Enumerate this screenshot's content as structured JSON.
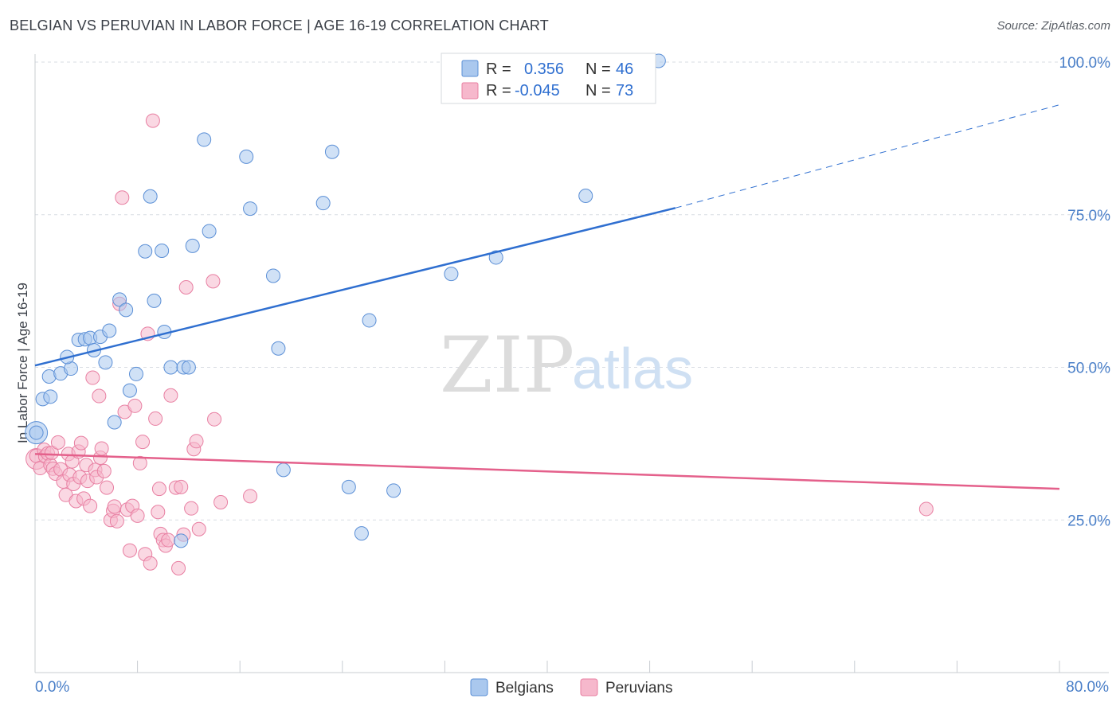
{
  "title": "BELGIAN VS PERUVIAN IN LABOR FORCE | AGE 16-19 CORRELATION CHART",
  "source": "Source: ZipAtlas.com",
  "watermark": {
    "zip": "ZIP",
    "atlas": "atlas"
  },
  "colors": {
    "belgian_fill": "#aac8ee",
    "belgian_stroke": "#5b8fd6",
    "belgian_line": "#2f6fd0",
    "peruvian_fill": "#f6b8cc",
    "peruvian_stroke": "#e87fa2",
    "peruvian_line": "#e4608b",
    "grid": "#d9dde3",
    "tick_text": "#4a7fc8"
  },
  "legend": {
    "rows": [
      {
        "r_label": "R =",
        "r_value": "0.356",
        "n_label": "N =",
        "n_value": "46"
      },
      {
        "r_label": "R =",
        "r_value": "-0.045",
        "n_label": "N =",
        "n_value": "73"
      }
    ]
  },
  "bottom_legend": {
    "belgians": "Belgians",
    "peruvians": "Peruvians"
  },
  "chart_data": {
    "type": "scatter",
    "title": "BELGIAN VS PERUVIAN IN LABOR FORCE | AGE 16-19 CORRELATION CHART",
    "xlabel": "",
    "ylabel": "In Labor Force | Age 16-19",
    "xlim": [
      0,
      80
    ],
    "ylim": [
      0,
      100
    ],
    "x_tick_labels": {
      "min": "0.0%",
      "max": "80.0%"
    },
    "y_ticks": [
      {
        "value": 25,
        "label": "25.0%"
      },
      {
        "value": 50,
        "label": "50.0%"
      },
      {
        "value": 75,
        "label": "75.0%"
      },
      {
        "value": 100,
        "label": "100.0%"
      }
    ],
    "series": [
      {
        "name": "Belgians",
        "r": 0.356,
        "n": 46,
        "trend": {
          "x0": 0,
          "y0": 50.3,
          "x1": 50,
          "y1": 76.1,
          "dash_x1": 80,
          "dash_y1": 93
        },
        "points": [
          [
            0.1,
            39.3
          ],
          [
            0.6,
            44.8
          ],
          [
            1.2,
            45.2
          ],
          [
            1.1,
            48.5
          ],
          [
            2.0,
            49.0
          ],
          [
            2.8,
            49.8
          ],
          [
            2.5,
            51.7
          ],
          [
            3.4,
            54.5
          ],
          [
            3.9,
            54.6
          ],
          [
            4.3,
            54.8
          ],
          [
            4.6,
            52.8
          ],
          [
            5.1,
            55.0
          ],
          [
            5.5,
            50.8
          ],
          [
            5.8,
            56.0
          ],
          [
            6.2,
            41.0
          ],
          [
            6.6,
            61.1
          ],
          [
            7.1,
            59.4
          ],
          [
            7.4,
            46.2
          ],
          [
            7.9,
            48.9
          ],
          [
            8.6,
            69.0
          ],
          [
            9.0,
            78.0
          ],
          [
            9.3,
            60.9
          ],
          [
            9.9,
            69.1
          ],
          [
            10.1,
            55.8
          ],
          [
            10.6,
            50.0
          ],
          [
            11.4,
            21.6
          ],
          [
            11.6,
            50.0
          ],
          [
            12.0,
            50.0
          ],
          [
            12.3,
            69.9
          ],
          [
            13.2,
            87.3
          ],
          [
            13.6,
            72.3
          ],
          [
            16.5,
            84.5
          ],
          [
            16.8,
            76.0
          ],
          [
            18.6,
            65.0
          ],
          [
            19.0,
            53.1
          ],
          [
            19.4,
            33.2
          ],
          [
            22.5,
            76.9
          ],
          [
            23.2,
            85.3
          ],
          [
            24.5,
            30.4
          ],
          [
            25.5,
            22.8
          ],
          [
            26.1,
            57.7
          ],
          [
            28.0,
            29.8
          ],
          [
            32.5,
            65.3
          ],
          [
            36.0,
            68.0
          ],
          [
            43.0,
            78.1
          ],
          [
            48.7,
            100.2
          ]
        ]
      },
      {
        "name": "Peruvians",
        "r": -0.045,
        "n": 73,
        "trend": {
          "x0": 0,
          "y0": 35.8,
          "x1": 80,
          "y1": 30.1
        },
        "points": [
          [
            0.1,
            35.5
          ],
          [
            0.4,
            33.5
          ],
          [
            0.7,
            36.5
          ],
          [
            0.8,
            35.4
          ],
          [
            1.0,
            35.9
          ],
          [
            1.2,
            34.0
          ],
          [
            1.3,
            36.0
          ],
          [
            1.4,
            33.4
          ],
          [
            1.6,
            32.6
          ],
          [
            1.8,
            37.7
          ],
          [
            2.0,
            33.3
          ],
          [
            2.2,
            31.3
          ],
          [
            2.4,
            29.1
          ],
          [
            2.6,
            35.8
          ],
          [
            2.7,
            32.4
          ],
          [
            2.9,
            34.6
          ],
          [
            3.0,
            30.9
          ],
          [
            3.2,
            28.1
          ],
          [
            3.4,
            36.2
          ],
          [
            3.5,
            32.0
          ],
          [
            3.6,
            37.6
          ],
          [
            3.8,
            28.5
          ],
          [
            4.0,
            34.0
          ],
          [
            4.1,
            31.4
          ],
          [
            4.3,
            27.3
          ],
          [
            4.5,
            48.3
          ],
          [
            4.7,
            33.2
          ],
          [
            4.8,
            32.0
          ],
          [
            5.0,
            45.3
          ],
          [
            5.1,
            35.2
          ],
          [
            5.2,
            36.7
          ],
          [
            5.4,
            33.0
          ],
          [
            5.6,
            30.3
          ],
          [
            5.9,
            25.0
          ],
          [
            6.1,
            26.5
          ],
          [
            6.2,
            27.2
          ],
          [
            6.4,
            24.8
          ],
          [
            6.6,
            60.4
          ],
          [
            6.8,
            77.8
          ],
          [
            7.0,
            42.7
          ],
          [
            7.2,
            26.7
          ],
          [
            7.4,
            20.0
          ],
          [
            7.6,
            27.3
          ],
          [
            7.8,
            43.7
          ],
          [
            8.0,
            25.7
          ],
          [
            8.2,
            34.3
          ],
          [
            8.4,
            37.8
          ],
          [
            8.6,
            19.4
          ],
          [
            8.8,
            55.5
          ],
          [
            9.0,
            17.9
          ],
          [
            9.2,
            90.4
          ],
          [
            9.4,
            41.6
          ],
          [
            9.6,
            26.3
          ],
          [
            9.8,
            22.7
          ],
          [
            10.0,
            21.7
          ],
          [
            10.2,
            20.8
          ],
          [
            10.4,
            21.7
          ],
          [
            10.6,
            45.4
          ],
          [
            11.0,
            30.3
          ],
          [
            11.2,
            17.1
          ],
          [
            11.4,
            30.4
          ],
          [
            11.6,
            22.6
          ],
          [
            11.8,
            63.1
          ],
          [
            12.2,
            26.9
          ],
          [
            12.4,
            36.6
          ],
          [
            12.6,
            37.9
          ],
          [
            12.8,
            23.5
          ],
          [
            13.9,
            64.1
          ],
          [
            14.0,
            41.5
          ],
          [
            14.5,
            27.9
          ],
          [
            16.8,
            28.9
          ],
          [
            9.7,
            30.1
          ],
          [
            69.6,
            26.8
          ]
        ]
      }
    ]
  }
}
